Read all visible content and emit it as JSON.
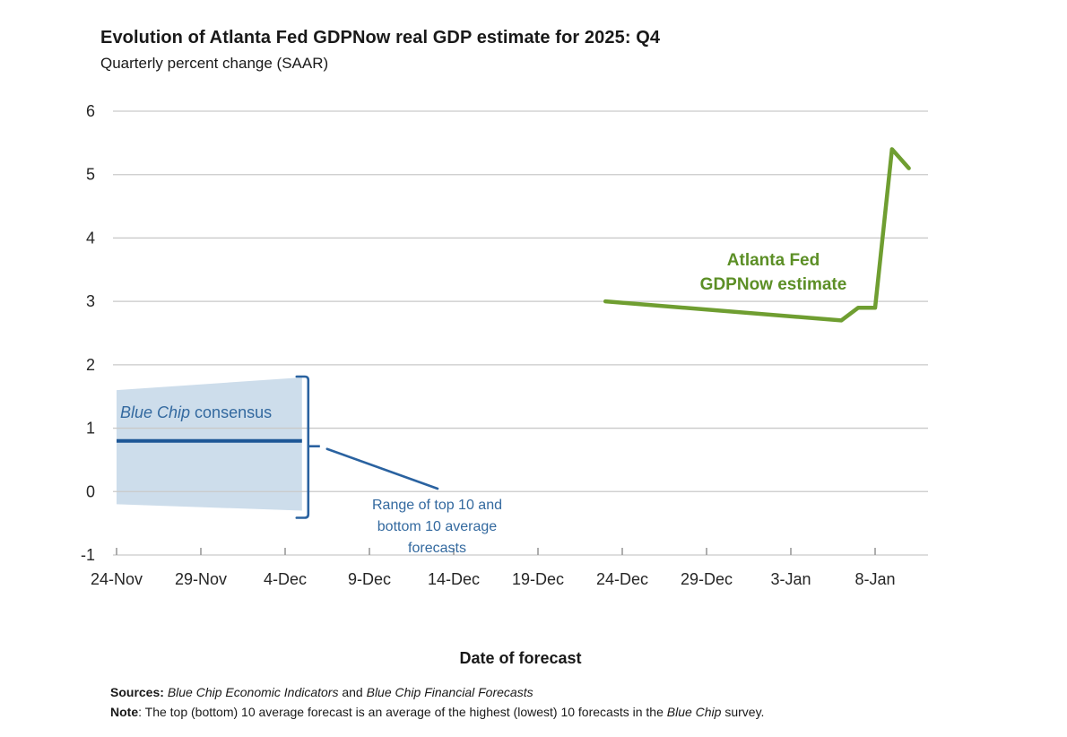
{
  "chart_data": {
    "type": "line",
    "title": "Evolution of Atlanta Fed GDPNow real GDP estimate for 2025: Q4",
    "subtitle": "Quarterly percent change (SAAR)",
    "xlabel": "Date of forecast",
    "ylim": [
      -1,
      6
    ],
    "grid": "horizontal",
    "legend_position": "annotations-on-plot",
    "y_ticks": [
      6,
      5,
      4,
      3,
      2,
      1,
      0,
      -1
    ],
    "x_ticks": [
      {
        "label": "24-Nov",
        "day": 0
      },
      {
        "label": "29-Nov",
        "day": 5
      },
      {
        "label": "4-Dec",
        "day": 10
      },
      {
        "label": "9-Dec",
        "day": 15
      },
      {
        "label": "14-Dec",
        "day": 20
      },
      {
        "label": "19-Dec",
        "day": 25
      },
      {
        "label": "24-Dec",
        "day": 30
      },
      {
        "label": "29-Dec",
        "day": 35
      },
      {
        "label": "3-Jan",
        "day": 40
      },
      {
        "label": "8-Jan",
        "day": 45
      }
    ],
    "series": [
      {
        "name": "Atlanta Fed GDPNow estimate",
        "color": "#6f9e31",
        "points": [
          {
            "date": "23-Dec",
            "day": 29,
            "value": 3.0
          },
          {
            "date": "6-Jan",
            "day": 43,
            "value": 2.7
          },
          {
            "date": "7-Jan",
            "day": 44,
            "value": 2.9
          },
          {
            "date": "8-Jan",
            "day": 45,
            "value": 2.9
          },
          {
            "date": "9-Jan",
            "day": 46,
            "value": 5.4
          },
          {
            "date": "10-Jan",
            "day": 47,
            "value": 5.1
          }
        ]
      },
      {
        "name": "Blue Chip consensus",
        "color": "#1d5796",
        "points": [
          {
            "date": "24-Nov",
            "day": 0,
            "value": 0.8
          },
          {
            "date": "5-Dec",
            "day": 11,
            "value": 0.8
          }
        ]
      }
    ],
    "band": {
      "name": "Range of top 10 and bottom 10 average forecasts",
      "color": "#cdddeb",
      "points": [
        {
          "date": "24-Nov",
          "day": 0,
          "top": 1.6,
          "bottom": -0.2
        },
        {
          "date": "5-Dec",
          "day": 11,
          "top": 1.8,
          "bottom": -0.3
        }
      ]
    },
    "colors": {
      "gridline": "#c9c9c9",
      "axis": "#b5b5b5",
      "tick": "#9a9a9a",
      "callout": "#2a62a0"
    }
  },
  "annotations": {
    "gdpnow": {
      "line1": "Atlanta Fed",
      "line2": "GDPNow estimate"
    },
    "bluechip": {
      "italic": "Blue Chip",
      "rest": " consensus"
    },
    "range": {
      "line1": "Range of top 10 and",
      "line2": "bottom 10 average",
      "line3": "forecasts"
    }
  },
  "footer": {
    "sources_label": "Sources:",
    "source_1": "Blue Chip Economic Indicators",
    "sources_and": " and ",
    "note_label": "Note",
    "source_2": "Blue Chip Financial Forecasts",
    "note_pre": ": The top (bottom) 10 average forecast is an average of the highest (lowest) 10 forecasts in the ",
    "note_italic": "Blue Chip",
    "note_post": " survey."
  }
}
